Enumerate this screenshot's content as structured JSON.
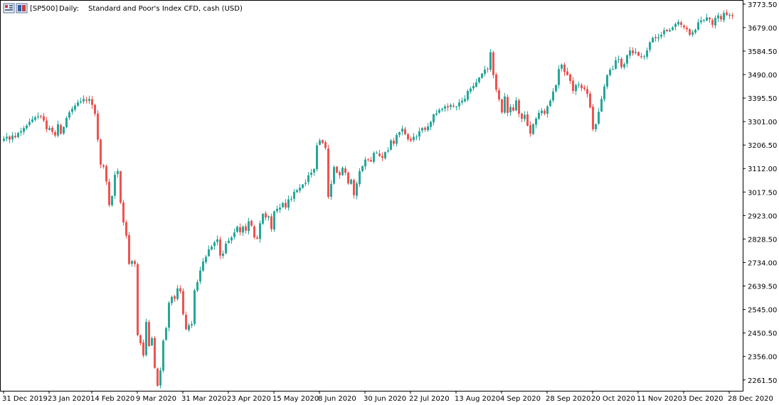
{
  "chart_header": {
    "symbol": "[SP500]",
    "timeframe": "Daily:",
    "description": "Standard and Poor's Index CFD, cash (USD)",
    "icon_names": [
      "chart-window-icon",
      "instrument-icon"
    ]
  },
  "chart_data": {
    "type": "candlestick",
    "title": "[SP500], Daily:  Standard and Poor's Index CFD, cash (USD)",
    "y_ticks": [
      "3773.50",
      "3679.00",
      "3584.50",
      "3490.00",
      "3395.50",
      "3301.00",
      "3206.50",
      "3112.00",
      "3017.50",
      "2923.00",
      "2828.50",
      "2734.00",
      "2639.50",
      "2545.00",
      "2450.50",
      "2356.00",
      "2261.50"
    ],
    "y_tick_values": [
      3773.5,
      3679.0,
      3584.5,
      3490.0,
      3395.5,
      3301.0,
      3206.5,
      3112.0,
      3017.5,
      2923.0,
      2828.5,
      2734.0,
      2639.5,
      2545.0,
      2450.5,
      2356.0,
      2261.5
    ],
    "x_ticks": [
      {
        "label": "31 Dec 2019",
        "index": 0
      },
      {
        "label": "23 Jan 2020",
        "index": 16
      },
      {
        "label": "14 Feb 2020",
        "index": 31
      },
      {
        "label": "9 Mar 2020",
        "index": 47
      },
      {
        "label": "31 Mar 2020",
        "index": 63
      },
      {
        "label": "23 Apr 2020",
        "index": 79
      },
      {
        "label": "15 May 2020",
        "index": 95
      },
      {
        "label": "8 Jun 2020",
        "index": 111
      },
      {
        "label": "30 Jun 2020",
        "index": 127
      },
      {
        "label": "22 Jul 2020",
        "index": 143
      },
      {
        "label": "13 Aug 2020",
        "index": 159
      },
      {
        "label": "4 Sep 2020",
        "index": 175
      },
      {
        "label": "28 Sep 2020",
        "index": 191
      },
      {
        "label": "20 Oct 2020",
        "index": 207
      },
      {
        "label": "11 Nov 2020",
        "index": 223
      },
      {
        "label": "3 Dec 2020",
        "index": 239
      },
      {
        "label": "28 Dec 2020",
        "index": 255
      }
    ],
    "ylim": [
      2218,
      3790
    ],
    "bull_color": "#26a69a",
    "bear_color": "#ef5350",
    "closes": [
      3232,
      3240,
      3228,
      3245,
      3238,
      3255,
      3262,
      3275,
      3285,
      3300,
      3310,
      3318,
      3322,
      3320,
      3305,
      3270,
      3275,
      3260,
      3245,
      3290,
      3252,
      3280,
      3315,
      3338,
      3352,
      3365,
      3378,
      3382,
      3392,
      3385,
      3392,
      3368,
      3332,
      3228,
      3128,
      3120,
      3060,
      2965,
      3002,
      3087,
      3102,
      2975,
      2895,
      2842,
      2728,
      2740,
      2728,
      2442,
      2410,
      2360,
      2495,
      2398,
      2430,
      2310,
      2238,
      2300,
      2420,
      2470,
      2572,
      2596,
      2588,
      2630,
      2618,
      2526,
      2465,
      2482,
      2487,
      2622,
      2655,
      2702,
      2738,
      2757,
      2787,
      2798,
      2815,
      2827,
      2762,
      2770,
      2810,
      2822,
      2835,
      2855,
      2878,
      2856,
      2878,
      2862,
      2900,
      2882,
      2835,
      2830,
      2892,
      2930,
      2915,
      2920,
      2868,
      2940,
      2950,
      2955,
      2973,
      2955,
      2988,
      2990,
      3018,
      3025,
      3035,
      3048,
      3055,
      3085,
      3095,
      3110,
      3205,
      3225,
      3215,
      3195,
      2998,
      3050,
      3118,
      3095,
      3085,
      3115,
      3095,
      3052,
      3068,
      3005,
      3052,
      3102,
      3122,
      3148,
      3148,
      3140,
      3175,
      3175,
      3162,
      3155,
      3178,
      3185,
      3225,
      3212,
      3247,
      3258,
      3272,
      3250,
      3230,
      3225,
      3240,
      3240,
      3262,
      3275,
      3268,
      3282,
      3300,
      3330,
      3334,
      3348,
      3352,
      3362,
      3358,
      3368,
      3362,
      3362,
      3378,
      3385,
      3392,
      3424,
      3434,
      3444,
      3459,
      3478,
      3494,
      3510,
      3512,
      3580,
      3488,
      3429,
      3390,
      3338,
      3402,
      3336,
      3360,
      3345,
      3386,
      3332,
      3312,
      3328,
      3284,
      3252,
      3290,
      3313,
      3336,
      3345,
      3333,
      3362,
      3385,
      3422,
      3448,
      3512,
      3530,
      3500,
      3488,
      3464,
      3424,
      3448,
      3450,
      3435,
      3432,
      3412,
      3358,
      3270,
      3290,
      3340,
      3392,
      3442,
      3488,
      3510,
      3512,
      3548,
      3552,
      3520,
      3532,
      3568,
      3587,
      3575,
      3582,
      3566,
      3560,
      3563,
      3587,
      3620,
      3638,
      3636,
      3640,
      3650,
      3668,
      3664,
      3669,
      3680,
      3694,
      3702,
      3690,
      3680,
      3672,
      3650,
      3660,
      3670,
      3700,
      3708,
      3710,
      3720,
      3712,
      3690,
      3718,
      3728,
      3712,
      3738,
      3730,
      3731,
      3725
    ]
  }
}
